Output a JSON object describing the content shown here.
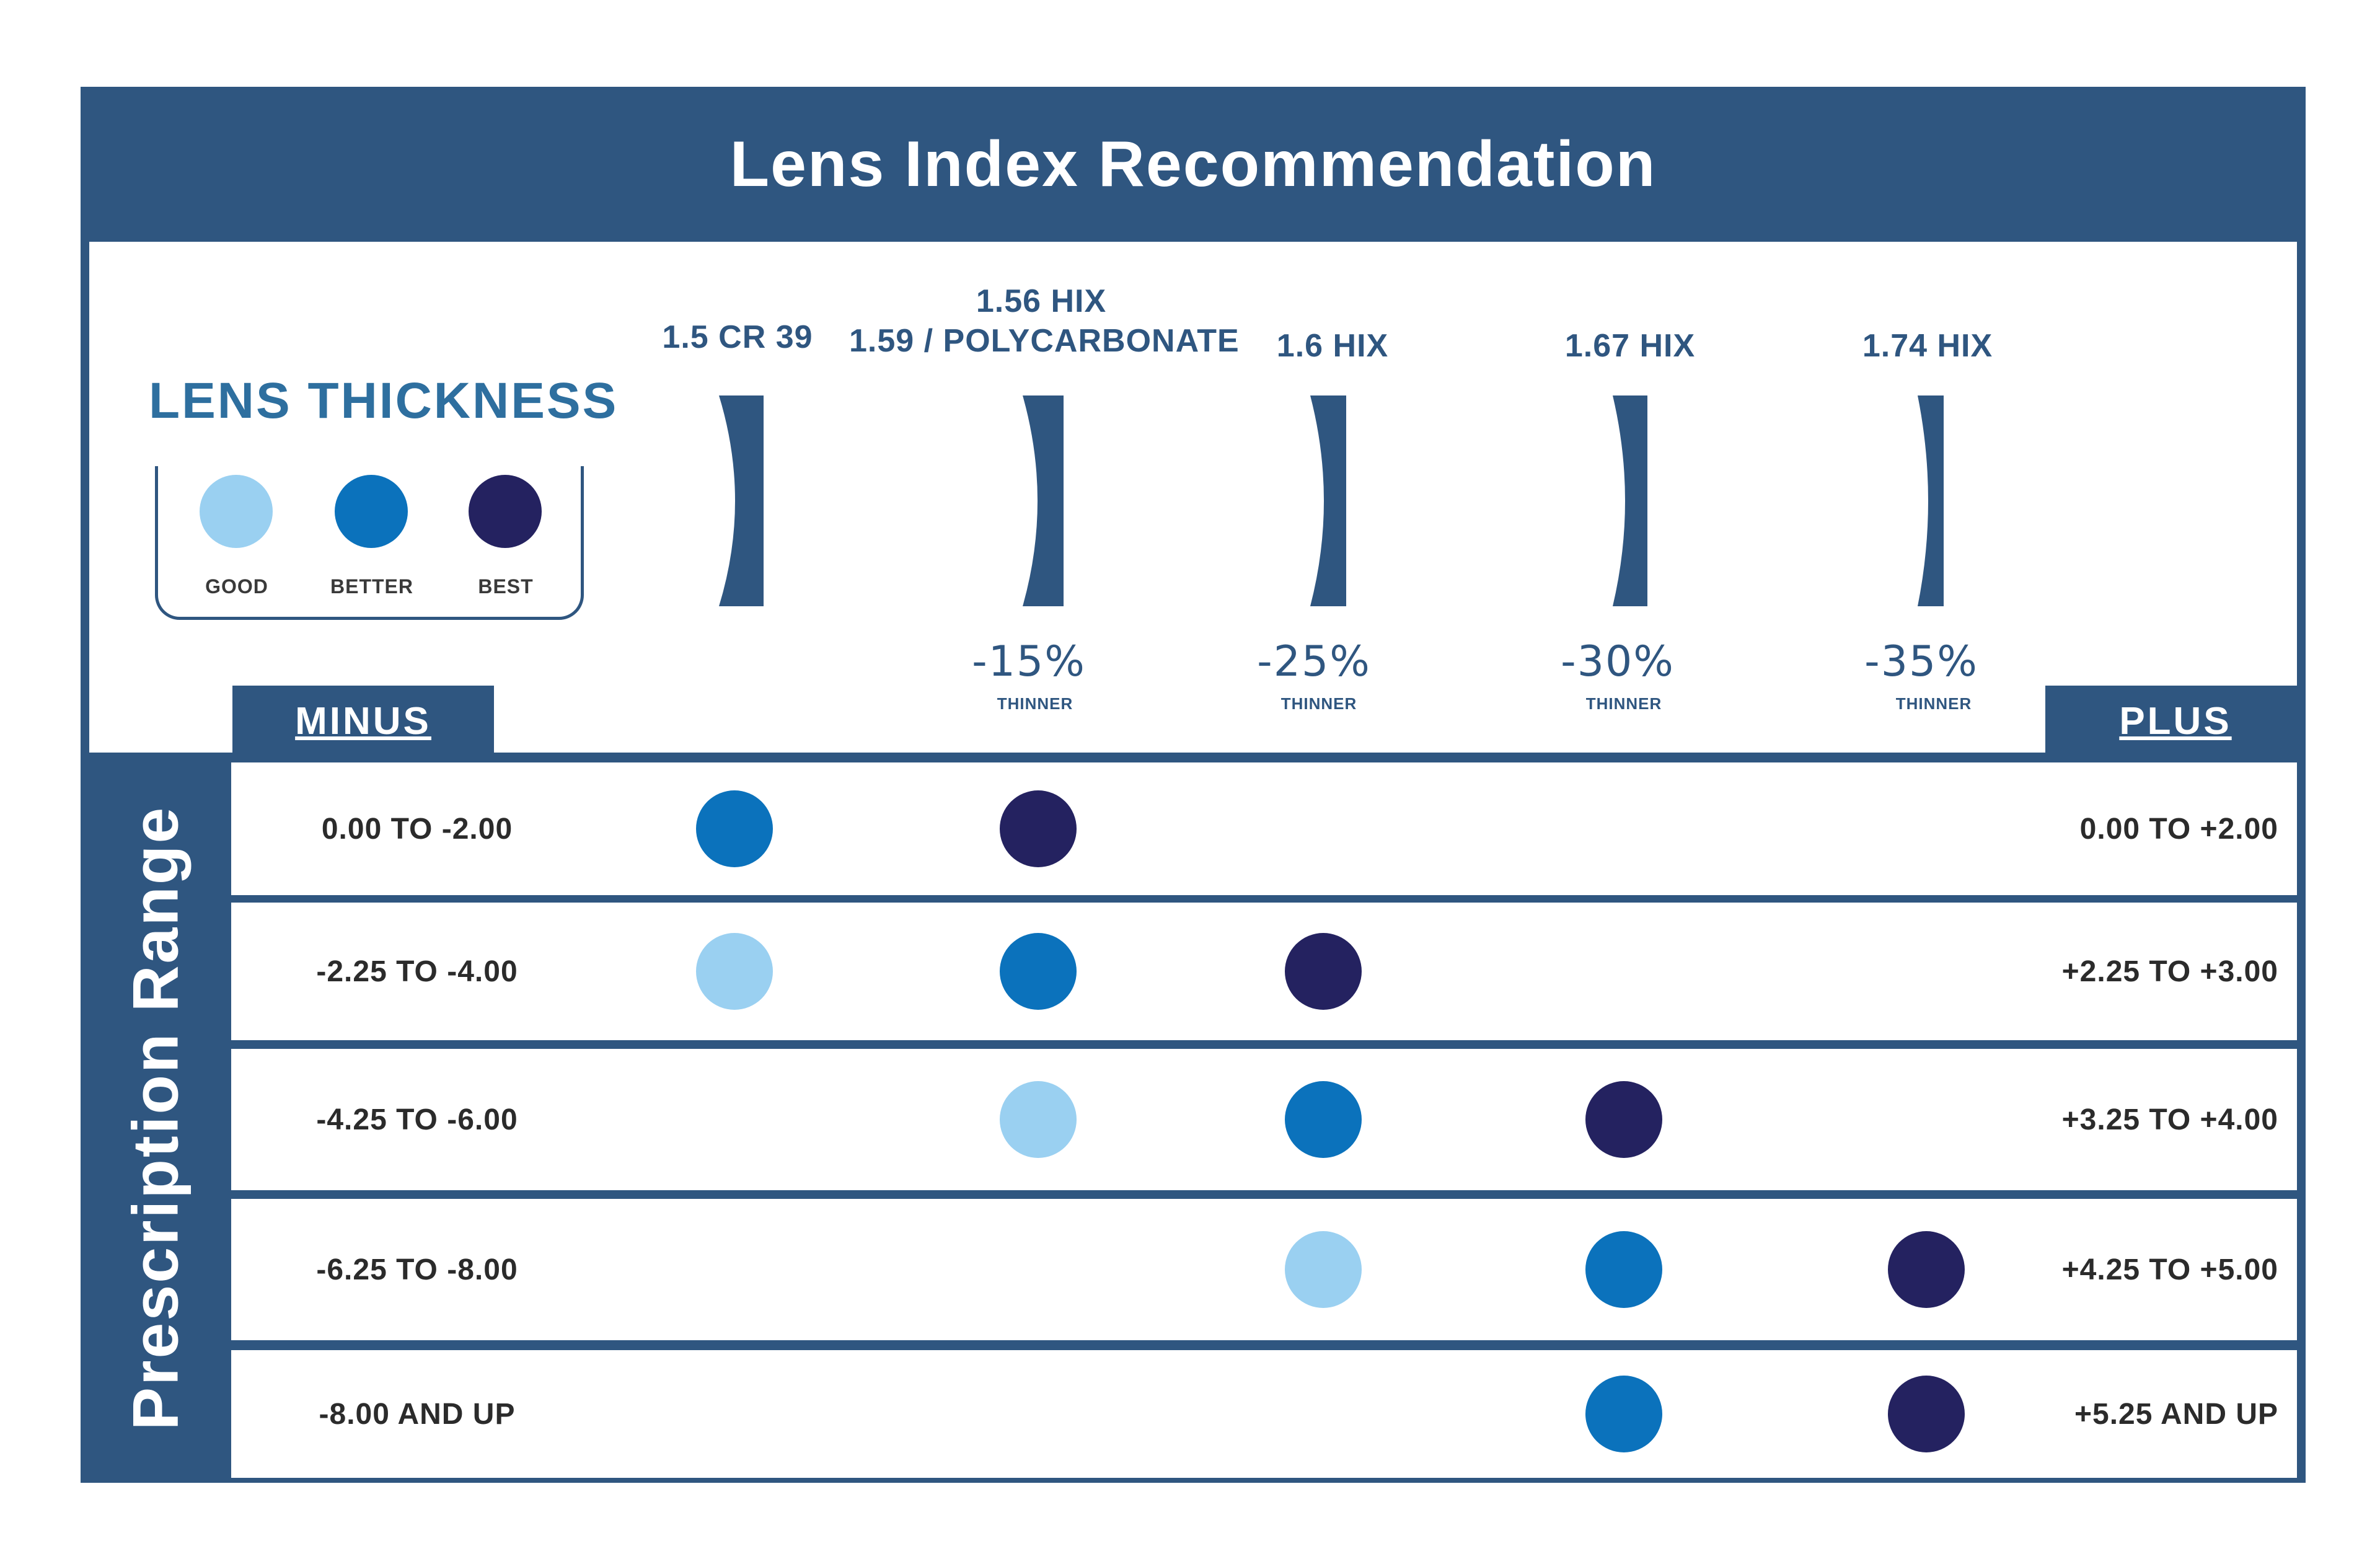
{
  "title": "Lens Index Recommendation",
  "legend": {
    "title": "LENS THICKNESS",
    "levels": [
      {
        "label": "GOOD",
        "color": "#9ad0f1"
      },
      {
        "label": "BETTER",
        "color": "#0b72bc"
      },
      {
        "label": "BEST",
        "color": "#242260"
      }
    ]
  },
  "columns": [
    {
      "line1": "1.5 CR 39",
      "line2": "",
      "thinner_pct": "",
      "thinner_label": ""
    },
    {
      "line1": "1.56 HIX",
      "line2": "1.59 / POLYCARBONATE",
      "thinner_pct": "-15%",
      "thinner_label": "THINNER"
    },
    {
      "line1": "1.6 HIX",
      "line2": "",
      "thinner_pct": "-25%",
      "thinner_label": "THINNER"
    },
    {
      "line1": "1.67 HIX",
      "line2": "",
      "thinner_pct": "-30%",
      "thinner_label": "THINNER"
    },
    {
      "line1": "1.74 HIX",
      "line2": "",
      "thinner_pct": "-35%",
      "thinner_label": "THINNER"
    }
  ],
  "minus_label": "MINUS",
  "plus_label": "PLUS",
  "side_label": "Prescription Range",
  "rows": [
    {
      "minus": "0.00 TO -2.00",
      "plus": "0.00 TO +2.00",
      "ratings": [
        "better",
        "best",
        null,
        null,
        null
      ]
    },
    {
      "minus": "-2.25 TO -4.00",
      "plus": "+2.25 TO +3.00",
      "ratings": [
        "good",
        "better",
        "best",
        null,
        null
      ]
    },
    {
      "minus": "-4.25 TO -6.00",
      "plus": "+3.25 TO +4.00",
      "ratings": [
        null,
        "good",
        "better",
        "best",
        null
      ]
    },
    {
      "minus": "-6.25 TO -8.00",
      "plus": "+4.25 TO +5.00",
      "ratings": [
        null,
        null,
        "good",
        "better",
        "best"
      ]
    },
    {
      "minus": "-8.00 AND UP",
      "plus": "+5.25 AND UP",
      "ratings": [
        null,
        null,
        null,
        "better",
        "best"
      ]
    }
  ],
  "colors": {
    "primary": "#2f5680",
    "good": "#9ad0f1",
    "better": "#0b72bc",
    "best": "#242260"
  }
}
